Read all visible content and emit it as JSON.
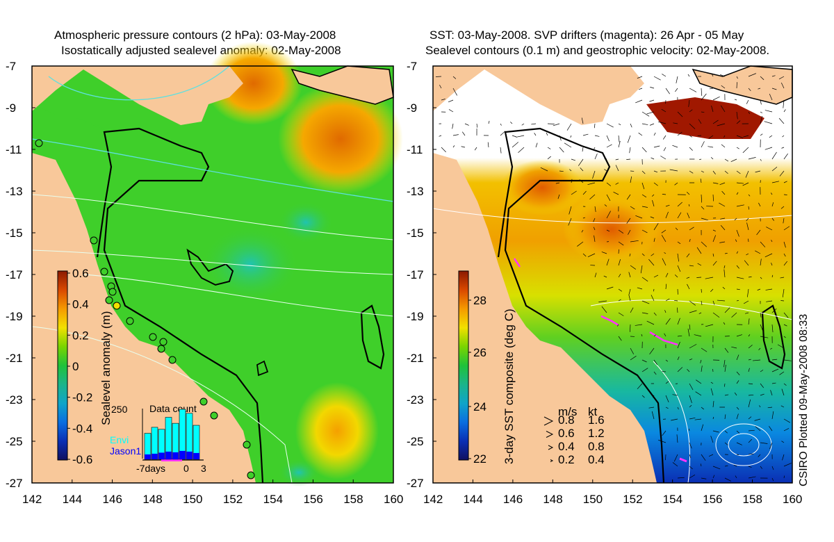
{
  "left_panel": {
    "title_line1": "Atmospheric pressure contours (2 hPa): 03-May-2008",
    "title_line2": "Isostatically adjusted sealevel anomaly: 02-May-2008",
    "colorbar_label": "Sealevel anomaly (m)",
    "colorbar_ticks": [
      "0.6",
      "0.4",
      "0.2",
      "0",
      "-0.2",
      "-0.4",
      "-0.6"
    ],
    "colorbar_colors": [
      "#8b1a00",
      "#d94800",
      "#f59a00",
      "#f2e000",
      "#7ad400",
      "#1fc23a",
      "#1bb48a",
      "#0fa4c8",
      "#0a6ee0",
      "#0a2fb4",
      "#101060"
    ],
    "inset": {
      "title": "Data count",
      "ymax_label": "250",
      "series_envi": "Envi",
      "series_jason": "Jason1",
      "x_ticks": [
        "-7days",
        "0",
        "3"
      ],
      "envi_color": "#00ffff",
      "jason_color": "#0000ff",
      "envi_values": [
        130,
        160,
        150,
        210,
        180,
        250,
        230,
        170
      ],
      "jason_values": [
        70,
        80,
        95,
        110,
        100,
        120,
        110,
        90
      ]
    },
    "land_color": "#f8c89a",
    "ocean_color": "#3fcf2a"
  },
  "right_panel": {
    "title_line1": "SST: 03-May-2008. SVP drifters (magenta): 26 Apr - 05 May",
    "title_line2": "Sealevel contours (0.1 m) and geostrophic velocity: 02-May-2008.",
    "colorbar_label": "3-day SST composite (deg C)",
    "colorbar_ticks": [
      "28",
      "26",
      "24",
      "22"
    ],
    "colorbar_colors": [
      "#8b1a00",
      "#d94800",
      "#f59a00",
      "#f2e000",
      "#7ad400",
      "#1fc23a",
      "#1bb48a",
      "#0fa4c8",
      "#0a6ee0",
      "#0a2fb4",
      "#101060"
    ],
    "legend": {
      "unit_ms": "m/s",
      "unit_kt": "kt",
      "rows": [
        {
          "ms": "0.8",
          "kt": "1.6"
        },
        {
          "ms": "0.6",
          "kt": "1.2"
        },
        {
          "ms": "0.4",
          "kt": "0.8"
        },
        {
          "ms": "0.2",
          "kt": "0.4"
        }
      ]
    },
    "land_color": "#f8c89a"
  },
  "axes": {
    "lat_ticks": [
      "-7",
      "-9",
      "-11",
      "-13",
      "-15",
      "-17",
      "-19",
      "-21",
      "-23",
      "-25",
      "-27"
    ],
    "lon_ticks": [
      "142",
      "144",
      "146",
      "148",
      "150",
      "152",
      "154",
      "156",
      "158",
      "160"
    ]
  },
  "credit": "CSIRO Plotted 09-May-2008 08:33"
}
